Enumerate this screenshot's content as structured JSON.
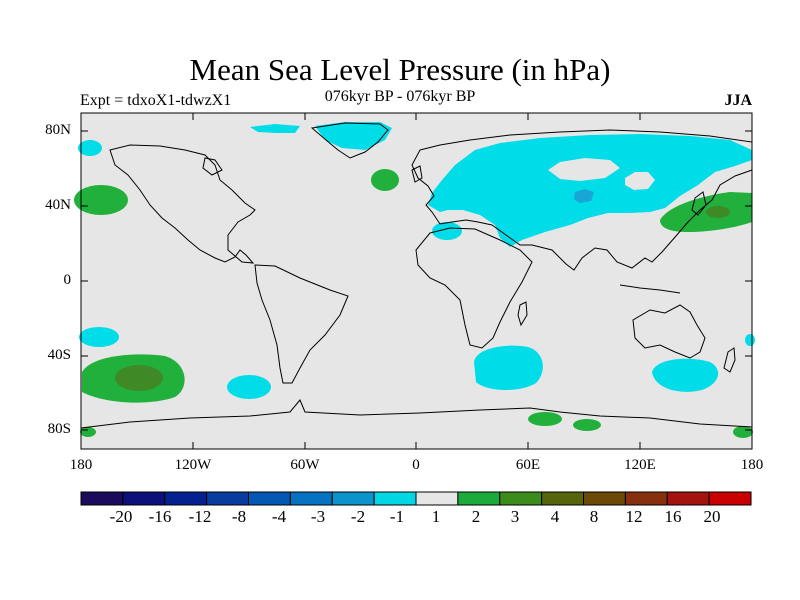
{
  "map": {
    "title": "Mean Sea Level Pressure (in hPa)",
    "experiment": "Expt = tdxoX1-tdwzX1",
    "period": "076kyr BP - 076kyr BP",
    "season": "JJA",
    "lat_labels": [
      "80N",
      "40N",
      "0",
      "40S",
      "80S"
    ],
    "lon_labels": [
      "180",
      "120W",
      "60W",
      "0",
      "60E",
      "120E",
      "180"
    ],
    "colors": {
      "background": "#e6e6e6",
      "light_cyan": "#00dde8",
      "mid_blue": "#19a6d6",
      "green1": "#22b03c",
      "green2": "#3f8a26"
    }
  },
  "colorbar": {
    "labels": [
      "-20",
      "-16",
      "-12",
      "-8",
      "-4",
      "-3",
      "-2",
      "-1",
      "1",
      "2",
      "3",
      "4",
      "8",
      "12",
      "16",
      "20"
    ],
    "colors": [
      "#1a0b5c",
      "#0d0f7a",
      "#04228f",
      "#083c9f",
      "#0457b3",
      "#0673c0",
      "#0b94cc",
      "#00d7e3",
      "#e6e6e6",
      "#1aab3b",
      "#3c8b1b",
      "#57650a",
      "#6b4a07",
      "#873010",
      "#a3140e",
      "#c80000"
    ]
  }
}
